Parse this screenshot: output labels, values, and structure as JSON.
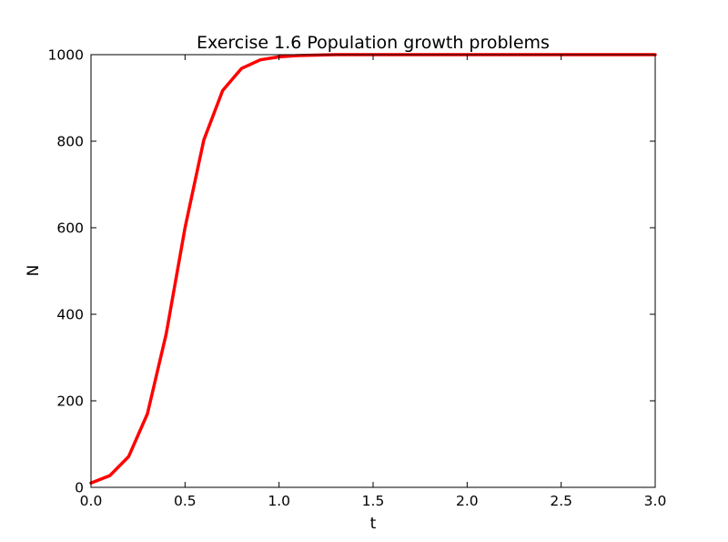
{
  "chart_data": {
    "type": "line",
    "title": "Exercise 1.6 Population growth problems",
    "xlabel": "t",
    "ylabel": "N",
    "xlim": [
      0.0,
      3.0
    ],
    "ylim": [
      0,
      1000
    ],
    "x_ticks": [
      "0.0",
      "0.5",
      "1.0",
      "1.5",
      "2.0",
      "2.5",
      "3.0"
    ],
    "y_ticks": [
      "0",
      "200",
      "400",
      "600",
      "800",
      "1000"
    ],
    "grid": false,
    "legend": "none",
    "series": [
      {
        "color": "#ff0000",
        "x": [
          0.0,
          0.1,
          0.2,
          0.3,
          0.4,
          0.5,
          0.6,
          0.7,
          0.8,
          0.9,
          1.0,
          1.1,
          1.2,
          1.3,
          1.5,
          2.0,
          2.5,
          3.0
        ],
        "values": [
          10,
          27,
          71,
          170,
          355,
          600,
          803,
          917,
          968,
          988,
          995,
          998,
          999,
          1000,
          1000,
          1000,
          1000,
          1000
        ]
      }
    ]
  }
}
